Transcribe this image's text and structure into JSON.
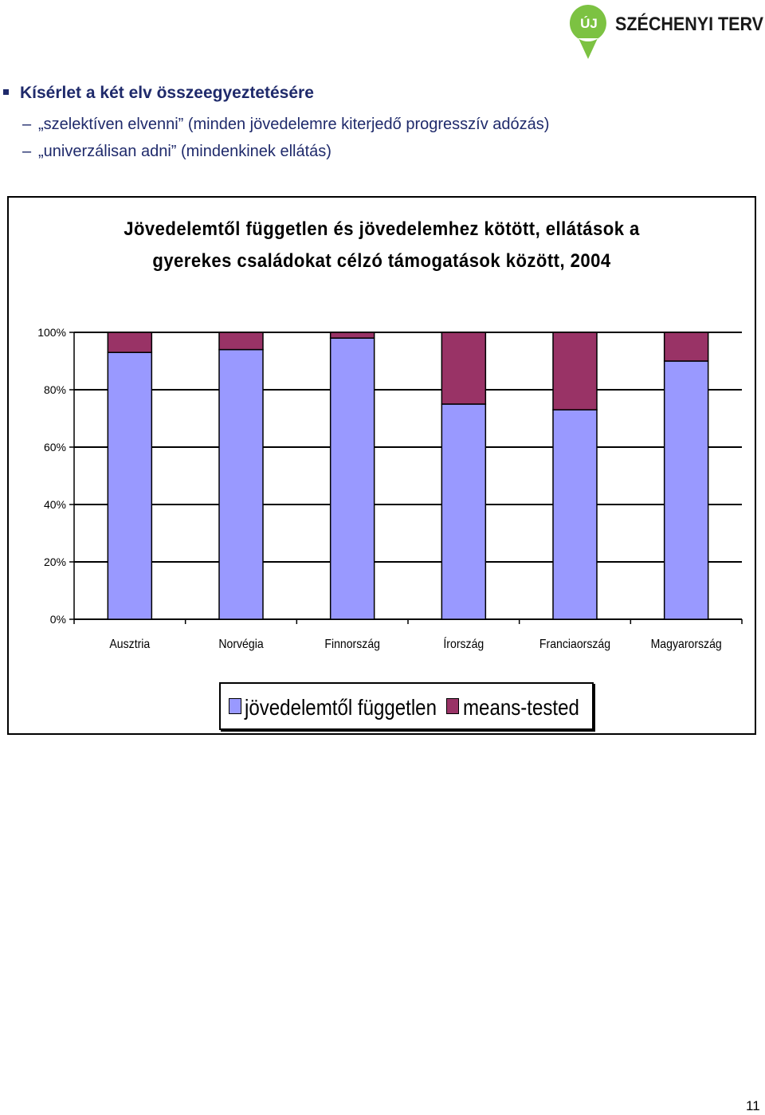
{
  "logo": {
    "badge": "ÚJ",
    "text": "SZÉCHENYI TERV",
    "color": "#7cc242"
  },
  "bullet": {
    "heading": "Kísérlet a két elv összeegyeztetésére",
    "items": [
      "„szelektíven elvenni” (minden jövedelemre kiterjedő progresszív adózás)",
      "„univerzálisan adni” (mindenkinek ellátás)"
    ]
  },
  "chart_title": {
    "line1": "Jövedelemtől független és jövedelemhez kötött, ellátások a",
    "line2": "gyerekes családokat célzó támogatások között, 2004"
  },
  "chart_data": {
    "type": "bar",
    "stacked": true,
    "title": "Jövedelemtől független és jövedelemhez kötött, ellátások a gyerekes családokat célzó támogatások között, 2004",
    "categories": [
      "Ausztria",
      "Norvégia",
      "Finnország",
      "Írország",
      "Franciaország",
      "Magyarország"
    ],
    "series": [
      {
        "name": "jövedelemtől független",
        "values": [
          93,
          94,
          98,
          75,
          73,
          90
        ],
        "color": "#9999ff"
      },
      {
        "name": "means-tested",
        "values": [
          7,
          6,
          2,
          25,
          27,
          10
        ],
        "color": "#993366"
      }
    ],
    "y_ticks": [
      "0%",
      "20%",
      "40%",
      "60%",
      "80%",
      "100%"
    ],
    "ylim": [
      0,
      100
    ],
    "grid": true,
    "legend": "bottom"
  },
  "page_number": "11"
}
